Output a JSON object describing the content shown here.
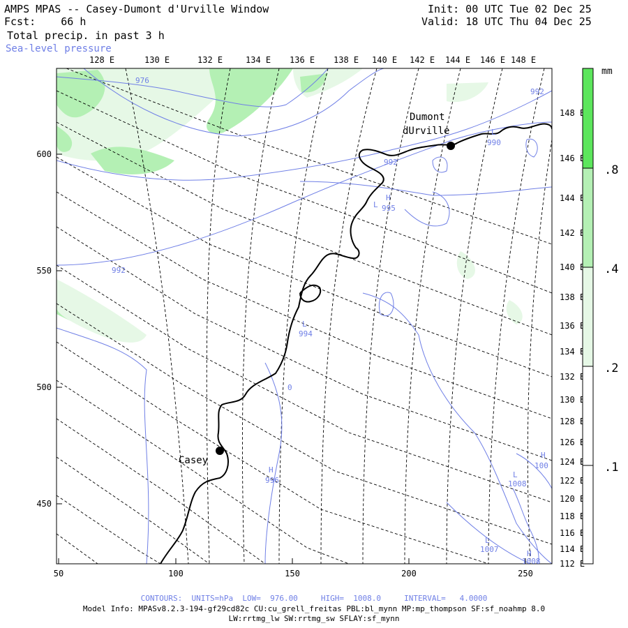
{
  "header": {
    "title": "AMPS MPAS -- Casey-Dumont d'Urville Window",
    "forecast_label": "Fcst:",
    "forecast_value": "66 h",
    "field_label": "Total precip. in past 3 h",
    "contour_label": "Sea-level pressure",
    "init": "Init: 00 UTC Tue 02 Dec 25",
    "valid": "Valid: 18 UTC Thu 04 Dec 25"
  },
  "axes": {
    "top_lon_labels": [
      "128 E",
      "130 E",
      "132 E",
      "134 E",
      "136 E",
      "138 E",
      "140 E",
      "142 E",
      "144 E",
      "146 E",
      "148 E"
    ],
    "right_lon_labels": [
      "148 E",
      "146 E",
      "144 E",
      "142 E",
      "140 E",
      "138 E",
      "136 E",
      "134 E",
      "132 E",
      "130 E",
      "128 E",
      "126 E",
      "124 E",
      "122 E",
      "120 E",
      "118 E",
      "116 E",
      "114 E",
      "112 E"
    ],
    "x_ticks": [
      50,
      100,
      150,
      200,
      250
    ],
    "y_ticks": [
      600,
      550,
      500,
      450
    ]
  },
  "colorbar": {
    "unit": "mm",
    "levels": [
      ".1",
      ".2",
      ".4",
      ".8"
    ],
    "colors": [
      "#ffffff",
      "#e6f8e6",
      "#b4f0b4",
      "#5ce65c"
    ]
  },
  "stations": [
    {
      "name_line1": "Dumont",
      "name_line2": "dUrville"
    },
    {
      "name_line1": "Casey",
      "name_line2": ""
    }
  ],
  "contour_labels": [
    "976",
    "992",
    "992",
    "992",
    "995",
    "990",
    "994",
    "996",
    "1008",
    "1007",
    "1008",
    "100",
    "0"
  ],
  "pressure_markers": [
    "L",
    "H",
    "L",
    "L",
    "H",
    "L",
    "H",
    "H",
    "L"
  ],
  "footer": {
    "contours": "CONTOURS:  UNITS=hPa  LOW=  976.00     HIGH=  1008.0     INTERVAL=   4.0000",
    "model_info": "Model Info: MPASv8.2.3-194-gf29cd82c CU:cu_grell_freitas PBL:bl_mynn MP:mp_thompson SF:sf_noahmp 8.0",
    "physics": "LW:rrtmg_lw SW:rrtmg_sw SFLAY:sf_mynn"
  },
  "colors": {
    "contour": "#6f7fe6",
    "precip_light": "#e6f8e6",
    "precip_mid": "#b4f0b4",
    "precip_dark": "#5ce65c"
  }
}
